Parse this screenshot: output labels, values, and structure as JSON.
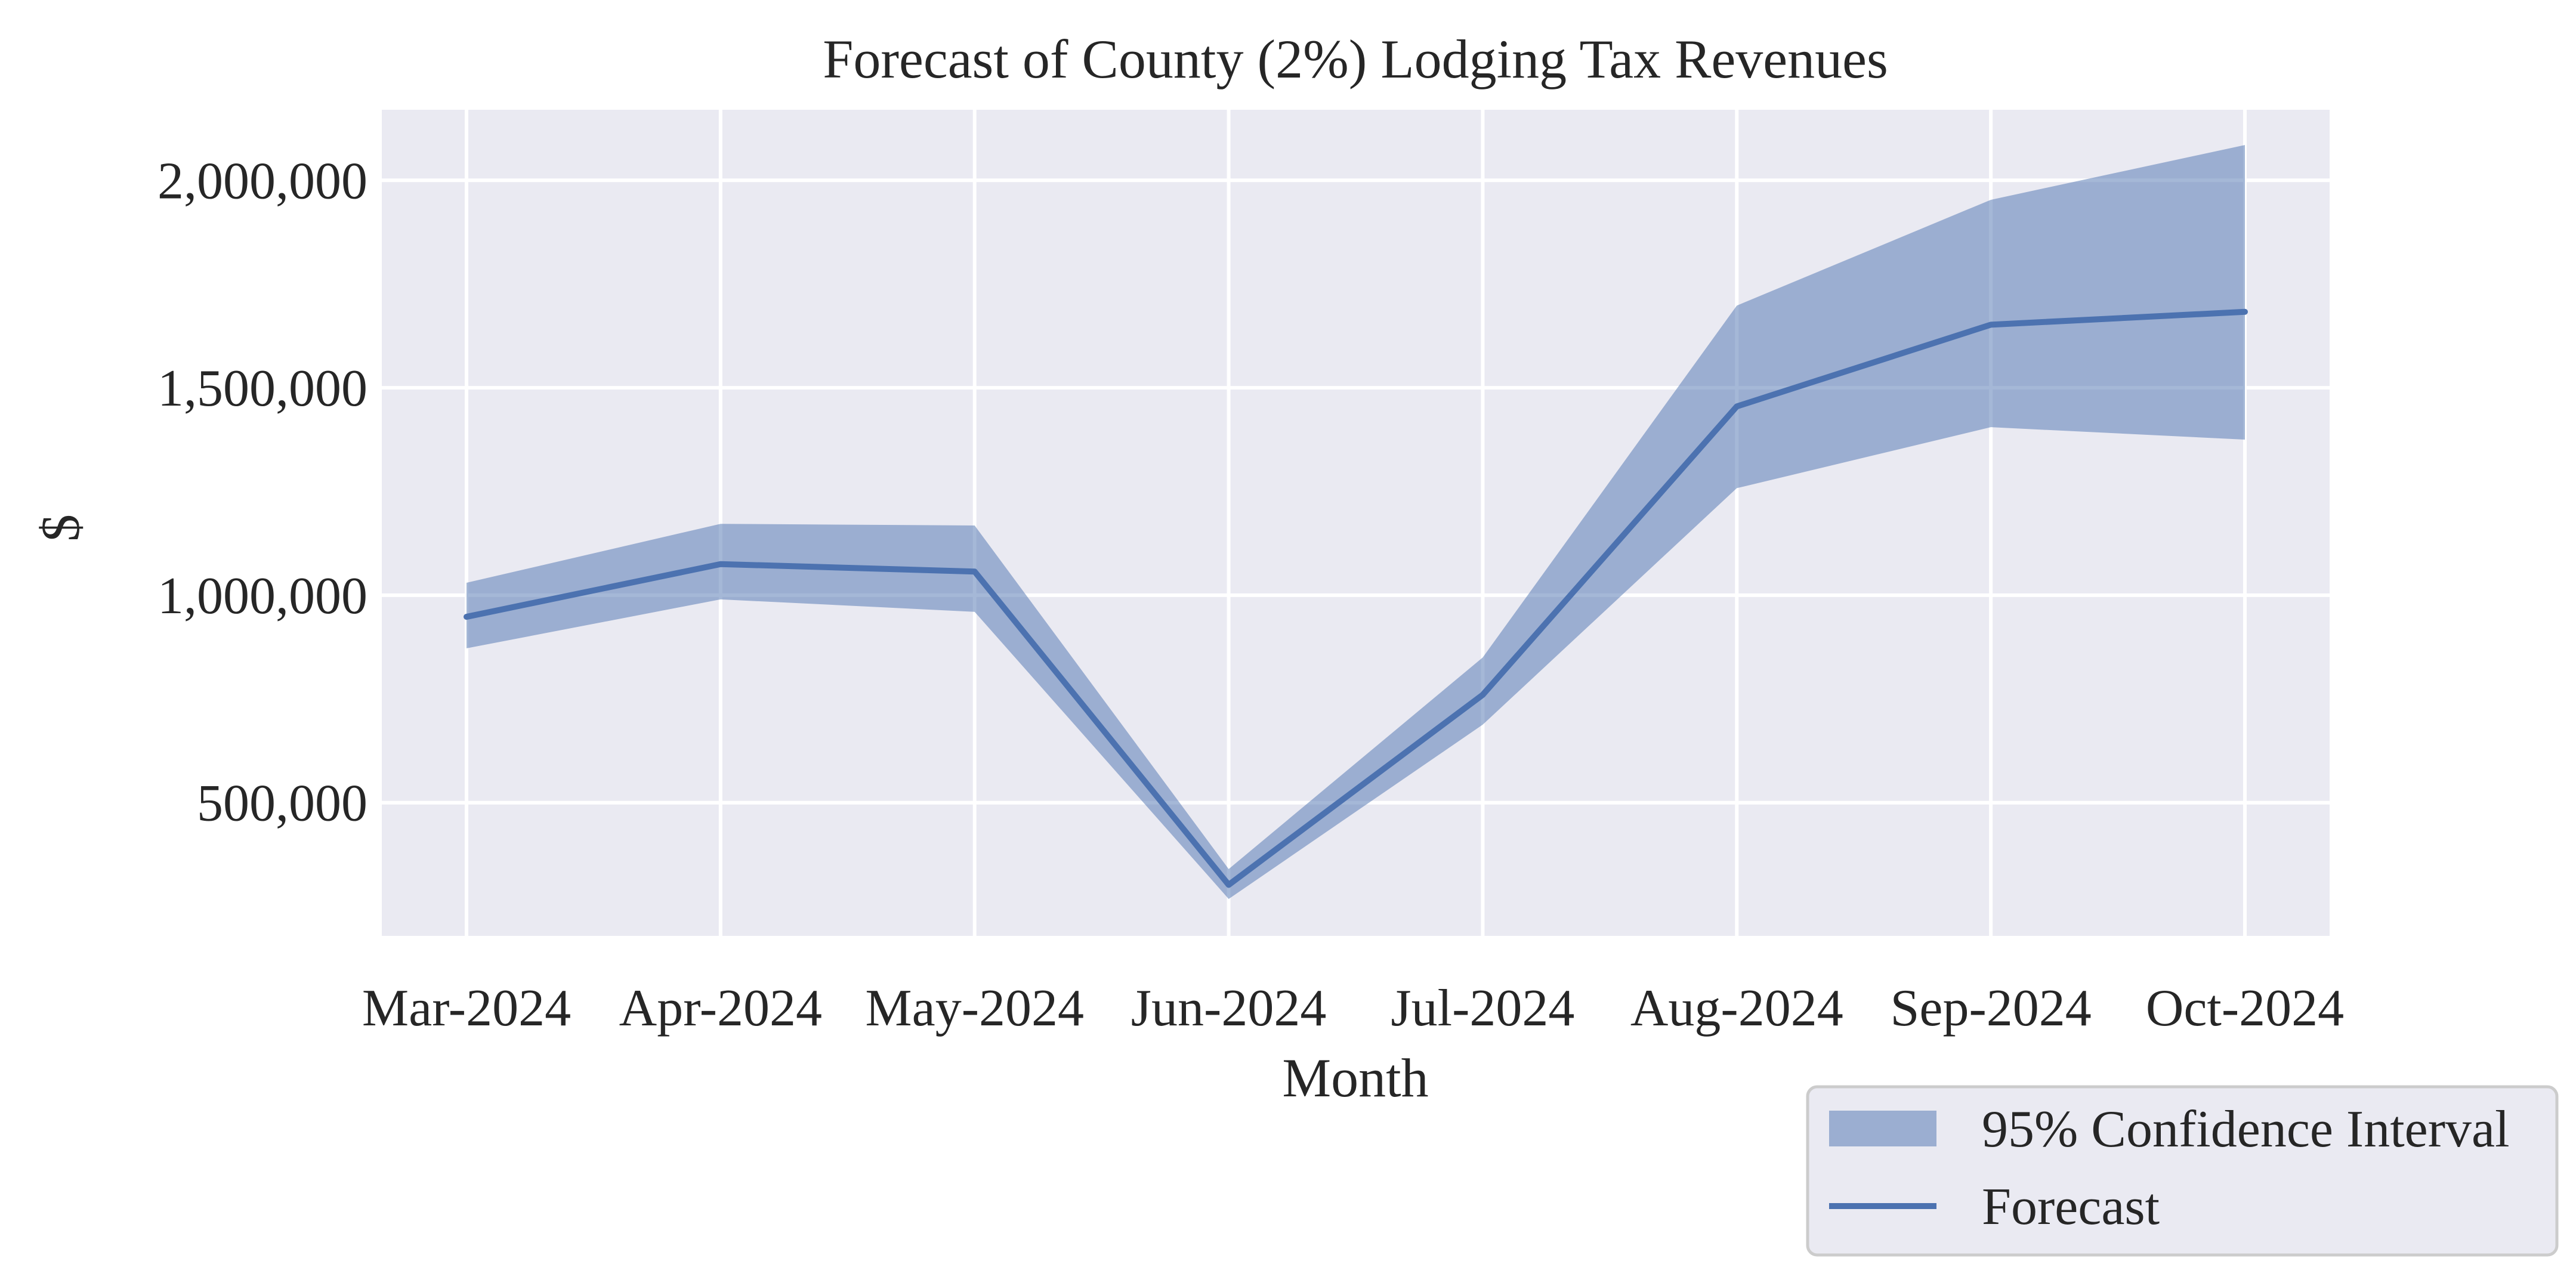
{
  "chart_data": {
    "type": "line",
    "title": "Forecast of County (2%) Lodging Tax Revenues",
    "xlabel": "Month",
    "ylabel": "$",
    "categories": [
      "Mar-2024",
      "Apr-2024",
      "May-2024",
      "Jun-2024",
      "Jul-2024",
      "Aug-2024",
      "Sep-2024",
      "Oct-2024"
    ],
    "series": [
      {
        "name": "Forecast",
        "type": "line",
        "color": "#4c72b0",
        "values": [
          948000,
          1075000,
          1057000,
          302000,
          760000,
          1455000,
          1652000,
          1683000
        ]
      },
      {
        "name": "95% Confidence Interval",
        "type": "band",
        "color": "#4c72b0",
        "lower": [
          872000,
          990000,
          960000,
          268000,
          688000,
          1258000,
          1405000,
          1375000
        ],
        "upper": [
          1030000,
          1172000,
          1168000,
          340000,
          850000,
          1698000,
          1953000,
          2085000
        ]
      }
    ],
    "yticks": [
      500000,
      1000000,
      1500000,
      2000000
    ],
    "ytick_labels": [
      "500,000",
      "1,000,000",
      "1,500,000",
      "2,000,000"
    ],
    "ylim": [
      179000,
      2170000
    ],
    "grid": true,
    "legend": {
      "position": "bottom-right-outside",
      "entries": [
        "95% Confidence Interval",
        "Forecast"
      ]
    },
    "colors": {
      "plot_background": "#eaeaf2",
      "grid": "#ffffff",
      "text": "#262626"
    }
  }
}
